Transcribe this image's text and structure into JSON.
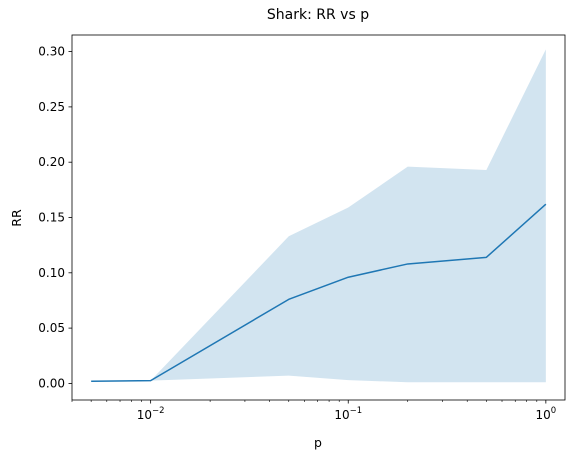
{
  "chart_data": {
    "type": "line",
    "title": "Shark: RR vs p",
    "xlabel": "p",
    "ylabel": "RR",
    "xscale": "log",
    "xlim": [
      0.004,
      1.25
    ],
    "ylim": [
      -0.015,
      0.315
    ],
    "grid": false,
    "colors": {
      "line": "#1f77b4",
      "band": "#1f77b4",
      "band_opacity": 0.2
    },
    "xticks": [
      {
        "value": 0.01,
        "base": "10",
        "exp": "−2"
      },
      {
        "value": 0.1,
        "base": "10",
        "exp": "−1"
      },
      {
        "value": 1,
        "base": "10",
        "exp": "0"
      }
    ],
    "yticks": [
      {
        "value": 0.0,
        "label": "0.00"
      },
      {
        "value": 0.05,
        "label": "0.05"
      },
      {
        "value": 0.1,
        "label": "0.10"
      },
      {
        "value": 0.15,
        "label": "0.15"
      },
      {
        "value": 0.2,
        "label": "0.20"
      },
      {
        "value": 0.25,
        "label": "0.25"
      },
      {
        "value": 0.3,
        "label": "0.30"
      }
    ],
    "series": [
      {
        "x": [
          0.005,
          0.01,
          0.05,
          0.1,
          0.2,
          0.5,
          1.0
        ],
        "y": [
          0.002,
          0.0025,
          0.076,
          0.096,
          0.108,
          0.114,
          0.162
        ],
        "lower": [
          0.002,
          0.0025,
          0.007,
          0.003,
          0.001,
          0.001,
          0.001
        ],
        "upper": [
          0.002,
          0.0025,
          0.133,
          0.159,
          0.196,
          0.193,
          0.302
        ]
      }
    ]
  }
}
